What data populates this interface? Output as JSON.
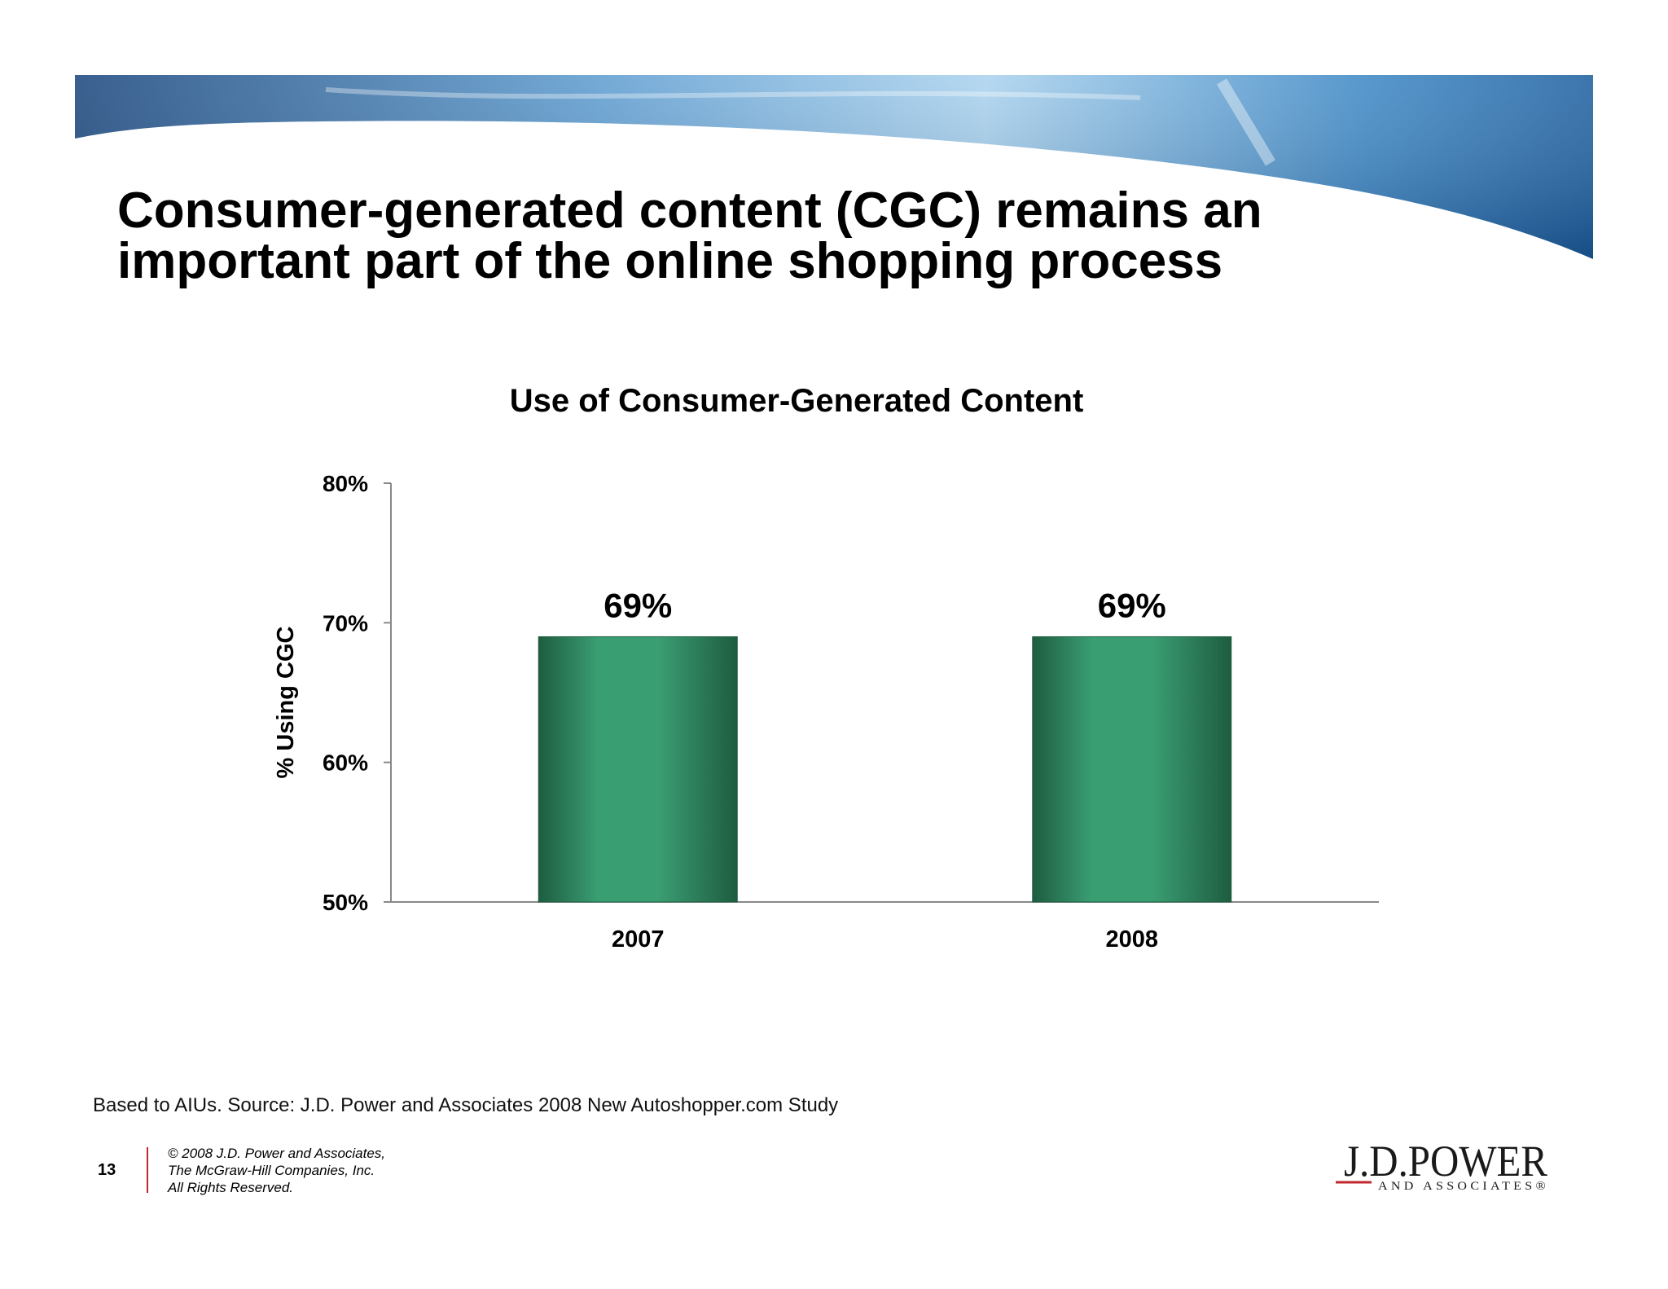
{
  "slide": {
    "title_line1": "Consumer-generated content (CGC) remains an",
    "title_line2": "important part of the online shopping process",
    "source_note": "Based to AIUs. Source: J.D. Power and Associates 2008 New Autoshopper.com Study",
    "page_number": "13",
    "copyright_lines": [
      "© 2008 J.D. Power and Associates,",
      "The McGraw-Hill Companies, Inc.",
      "All Rights Reserved."
    ],
    "logo_text_main": "J.D.POWER",
    "logo_text_sub": "AND ASSOCIATES®"
  },
  "chart_data": {
    "type": "bar",
    "title": "Use of Consumer-Generated Content",
    "xlabel": "",
    "ylabel": "% Using CGC",
    "categories": [
      "2007",
      "2008"
    ],
    "values": [
      69,
      69
    ],
    "data_labels": [
      "69%",
      "69%"
    ],
    "ylim": [
      50,
      80
    ],
    "yticks": [
      50,
      60,
      70,
      80
    ],
    "ytick_labels": [
      "50%",
      "60%",
      "70%",
      "80%"
    ],
    "grid": false,
    "bar_color": "#3a9e73"
  }
}
